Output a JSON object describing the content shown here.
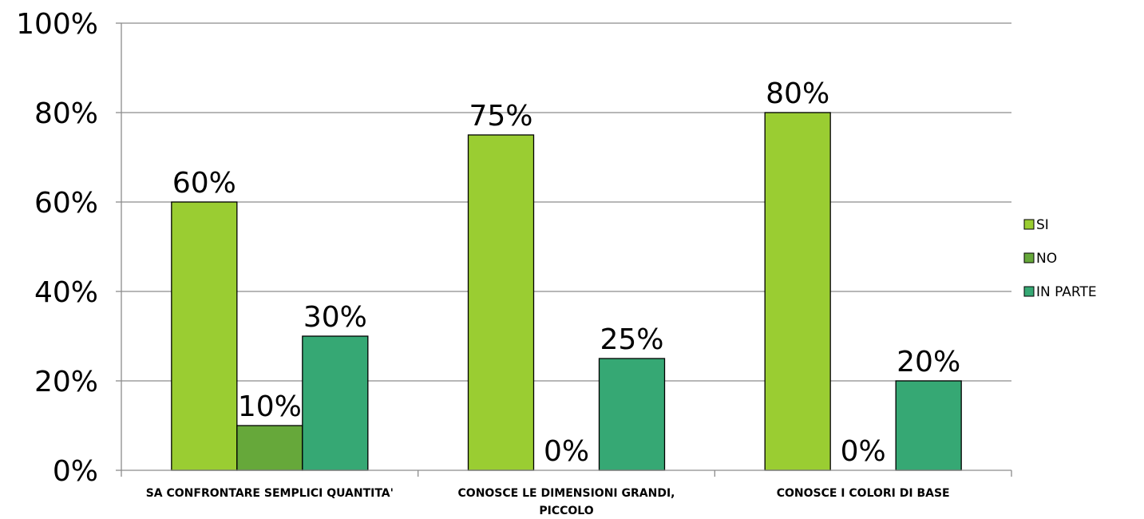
{
  "chart_data": {
    "type": "bar",
    "title": "",
    "xlabel": "",
    "ylabel": "",
    "ylim": [
      0,
      100
    ],
    "yticks": [
      "0%",
      "20%",
      "40%",
      "60%",
      "80%",
      "100%"
    ],
    "grid": true,
    "legend_position": "right",
    "categories": [
      [
        "SA CONFRONTARE SEMPLICI QUANTITA'"
      ],
      [
        "CONOSCE LE DIMENSIONI GRANDI,",
        "PICCOLO"
      ],
      [
        "CONOSCE I COLORI DI BASE"
      ]
    ],
    "series": [
      {
        "name": "SI",
        "color": "#9ACD32",
        "values": [
          60,
          75,
          80
        ],
        "labels": [
          "60%",
          "75%",
          "80%"
        ]
      },
      {
        "name": "NO",
        "color": "#66A83A",
        "values": [
          10,
          0,
          0
        ],
        "labels": [
          "10%",
          "0%",
          "0%"
        ]
      },
      {
        "name": "IN PARTE",
        "color": "#36A874",
        "values": [
          30,
          25,
          20
        ],
        "labels": [
          "30%",
          "25%",
          "20%"
        ]
      }
    ]
  }
}
